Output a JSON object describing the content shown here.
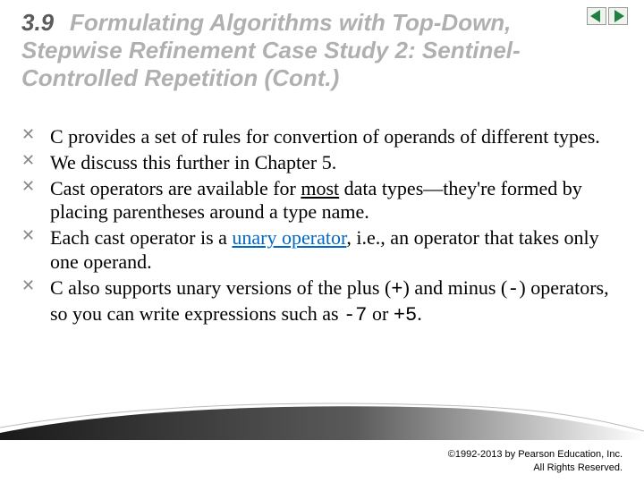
{
  "title": {
    "section_number": "3.9",
    "heading": "Formulating Algorithms with Top-Down, Stepwise Refinement Case Study 2: Sentinel-Controlled Repetition (Cont.)",
    "number_color": "#5b5b5b",
    "text_color": "#b0b0b0",
    "font_family": "Arial",
    "font_size_pt": 20,
    "font_weight": "bold",
    "font_style": "italic"
  },
  "body": {
    "font_family": "Times New Roman",
    "font_size_pt": 17,
    "bullet_glyph": "✕",
    "bullet_color": "#888888",
    "link_color": "#0067c5",
    "items": [
      {
        "runs": [
          {
            "t": "C provides a set of rules for convertion of operands of different types."
          }
        ]
      },
      {
        "runs": [
          {
            "t": "We discuss this further in Chapter 5."
          }
        ]
      },
      {
        "runs": [
          {
            "t": "Cast operators are available for "
          },
          {
            "t": "most",
            "underline": true
          },
          {
            "t": " data types—they're formed by placing parentheses around a type name."
          }
        ]
      },
      {
        "runs": [
          {
            "t": "Each cast operator is a "
          },
          {
            "t": "unary operator",
            "link": true
          },
          {
            "t": ", i.e., an operator that takes only one operand."
          }
        ]
      },
      {
        "runs": [
          {
            "t": "C also supports unary versions of the plus ("
          },
          {
            "t": "+",
            "mono": true
          },
          {
            "t": ") and minus ("
          },
          {
            "t": "-",
            "mono": true
          },
          {
            "t": ") operators, so you can write expressions such as "
          },
          {
            "t": "-7",
            "mono": true
          },
          {
            "t": " or "
          },
          {
            "t": "+5",
            "mono": true
          },
          {
            "t": "."
          }
        ]
      }
    ]
  },
  "nav": {
    "prev_icon": "prev",
    "next_icon": "next",
    "prev_fill": "#208040",
    "next_fill": "#208040"
  },
  "footer_shape": {
    "gradient_from": "#1a1a1a",
    "gradient_to": "#ffffff"
  },
  "copyright": {
    "line1": "©1992-2013 by Pearson Education, Inc.",
    "line2": "All Rights Reserved.",
    "font_family": "Arial",
    "font_size_pt": 8
  }
}
